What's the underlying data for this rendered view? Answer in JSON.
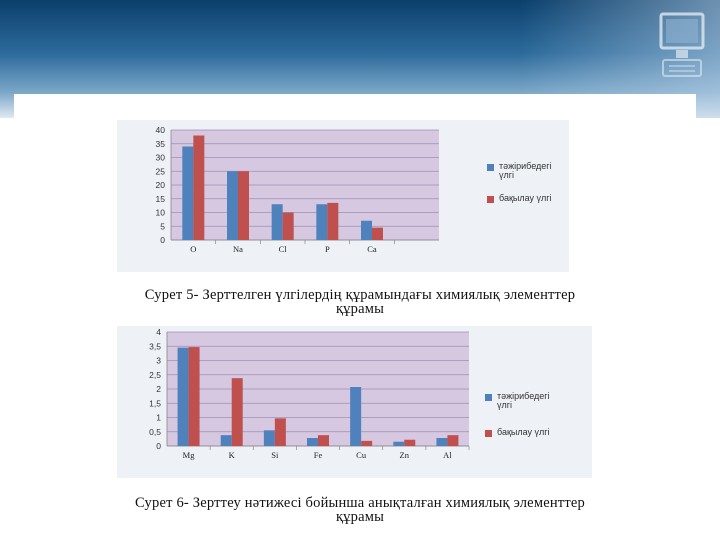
{
  "colors": {
    "series_a": "#4f81bd",
    "series_b": "#c0504d",
    "plot_bg": "#d6c8e0",
    "panel_bg": "#eef1f6",
    "header_dark": "#0b3f6c"
  },
  "header": {
    "icon": "computer-monitor-icon"
  },
  "figure1": {
    "caption_line1": "Сурет 5-  Зерттелген үлгілердің құрамындағы химиялық элементтер",
    "caption_line2": "құрамы"
  },
  "figure2": {
    "caption_line1": "Сурет 6-  Зерттеу нәтижесі бойынша анықталған химиялық элементтер",
    "caption_line2": "құрамы"
  },
  "chart_data": [
    {
      "type": "bar",
      "title": "",
      "xlabel": "",
      "ylabel": "",
      "categories": [
        "O",
        "Na",
        "Cl",
        "P",
        "Ca"
      ],
      "ylim": [
        0,
        40
      ],
      "yticks": [
        0,
        5,
        10,
        15,
        20,
        25,
        30,
        35,
        40
      ],
      "grid": true,
      "legend_position": "right",
      "series": [
        {
          "name": "тәжірибедегі үлгі",
          "color": "#4f81bd",
          "values": [
            34,
            25,
            13,
            13,
            7
          ]
        },
        {
          "name": "бақылау үлгі",
          "color": "#c0504d",
          "values": [
            38,
            25,
            10,
            13.5,
            4.5
          ]
        }
      ]
    },
    {
      "type": "bar",
      "title": "",
      "xlabel": "",
      "ylabel": "",
      "categories": [
        "Mg",
        "K",
        "Si",
        "Fe",
        "Cu",
        "Zn",
        "Al"
      ],
      "ylim": [
        0,
        4
      ],
      "yticks": [
        "0",
        "0,5",
        "1",
        "1,5",
        "2",
        "2,5",
        "3",
        "3,5",
        "4"
      ],
      "grid": true,
      "legend_position": "right",
      "series": [
        {
          "name": "тәжірибедегі үлгі",
          "color": "#4f81bd",
          "values": [
            3.45,
            0.38,
            0.55,
            0.28,
            2.07,
            0.15,
            0.28
          ]
        },
        {
          "name": "бақылау үлгі",
          "color": "#c0504d",
          "values": [
            3.47,
            2.38,
            0.97,
            0.38,
            0.18,
            0.22,
            0.38
          ]
        }
      ]
    }
  ]
}
